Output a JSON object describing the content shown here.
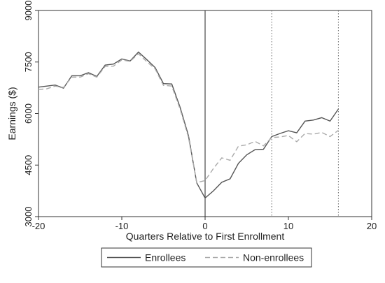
{
  "chart_data": {
    "type": "line",
    "xlabel": "Quarters Relative to First Enrollment",
    "ylabel": "Earnings ($)",
    "xlim": [
      -20,
      20
    ],
    "ylim": [
      3000,
      9000
    ],
    "xticks": [
      -20,
      -10,
      0,
      10,
      20
    ],
    "yticks": [
      3000,
      4500,
      6000,
      7500,
      9000
    ],
    "vertical_lines": [
      {
        "x": 0,
        "style": "solid"
      },
      {
        "x": 8,
        "style": "dotted"
      },
      {
        "x": 16,
        "style": "dotted"
      }
    ],
    "grid": false,
    "legend_position": "bottom",
    "x": [
      -20,
      -19,
      -18,
      -17,
      -16,
      -15,
      -14,
      -13,
      -12,
      -11,
      -10,
      -9,
      -8,
      -7,
      -6,
      -5,
      -4,
      -3,
      -2,
      -1,
      0,
      1,
      2,
      3,
      4,
      5,
      6,
      7,
      8,
      9,
      10,
      11,
      12,
      13,
      14,
      15,
      16
    ],
    "series": [
      {
        "name": "Enrollees",
        "color": "#555555",
        "dash": "solid",
        "values": [
          6770,
          6800,
          6830,
          6740,
          7100,
          7100,
          7190,
          7080,
          7410,
          7440,
          7590,
          7530,
          7790,
          7570,
          7340,
          6870,
          6860,
          6180,
          5360,
          3980,
          3540,
          3750,
          4000,
          4100,
          4550,
          4800,
          4950,
          4960,
          5330,
          5420,
          5500,
          5440,
          5780,
          5810,
          5880,
          5780,
          6130
        ]
      },
      {
        "name": "Non-enrollees",
        "color": "#aaaaaa",
        "dash": "dashed",
        "values": [
          6700,
          6720,
          6800,
          6760,
          7060,
          7060,
          7160,
          7060,
          7370,
          7380,
          7560,
          7520,
          7740,
          7510,
          7300,
          6820,
          6800,
          6130,
          5310,
          3990,
          4050,
          4400,
          4710,
          4640,
          5050,
          5090,
          5190,
          5060,
          5300,
          5320,
          5360,
          5180,
          5420,
          5400,
          5450,
          5330,
          5510
        ]
      }
    ]
  }
}
